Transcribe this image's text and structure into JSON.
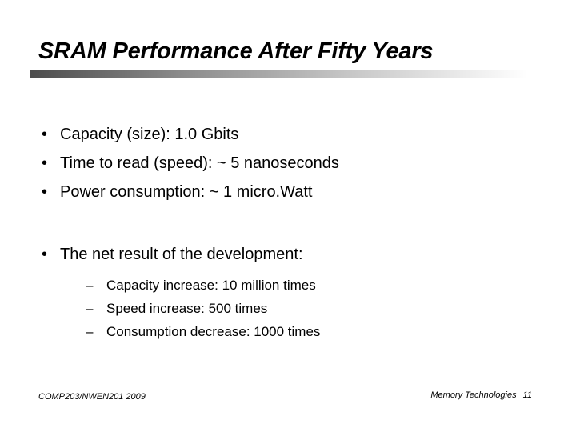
{
  "slide": {
    "title": "SRAM Performance After Fifty Years",
    "bullets": [
      "Capacity (size): 1.0 Gbits",
      "Time to read (speed): ~ 5 nanoseconds",
      "Power consumption: ~ 1 micro.Watt"
    ],
    "summary": {
      "label": "The net result of the development:",
      "items": [
        "Capacity increase: 10 million times",
        "Speed increase: 500 times",
        "Consumption decrease: 1000 times"
      ]
    },
    "bullet_marker": "•",
    "sub_marker": "–",
    "footer": {
      "course": "COMP203/NWEN201 2009",
      "topic": "Memory Technologies",
      "page": "11"
    }
  }
}
